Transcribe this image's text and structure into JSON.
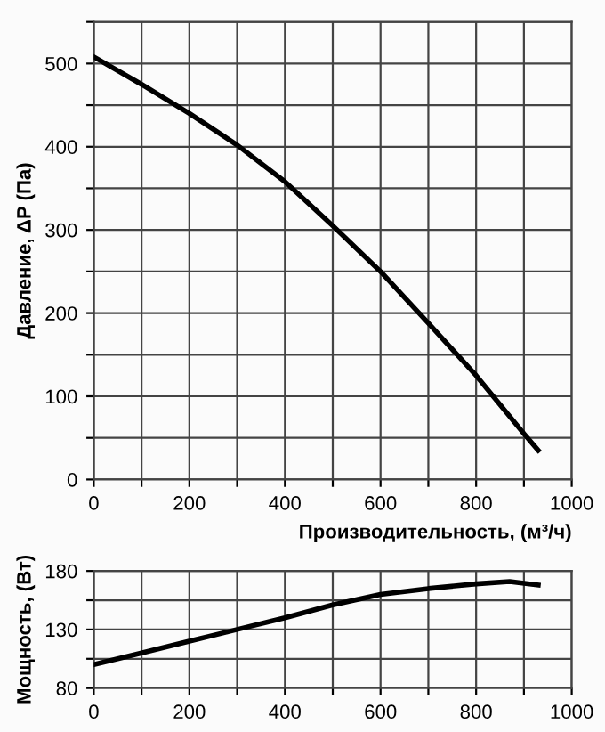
{
  "chart_data": [
    {
      "type": "line",
      "ylabel": "Давление, ΔP (Па)",
      "xlabel": "Производительность, (м³/ч)",
      "grid": true,
      "marker": "none",
      "line_style": "solid",
      "x": [
        0,
        100,
        200,
        300,
        400,
        500,
        600,
        700,
        800,
        900,
        930
      ],
      "series": [
        {
          "color": "#000000",
          "values": [
            508,
            475,
            440,
            402,
            358,
            305,
            250,
            188,
            125,
            55,
            35
          ]
        }
      ],
      "xlim": [
        0,
        1000
      ],
      "xticks": [
        0,
        {
          "value": 100,
          "label": null
        },
        200,
        {
          "value": 300,
          "label": null
        },
        400,
        {
          "value": 500,
          "label": null
        },
        600,
        {
          "value": 700,
          "label": null
        },
        800,
        {
          "value": 900,
          "label": null
        },
        1000
      ],
      "ylim": [
        0,
        550
      ],
      "yticks": [
        0,
        {
          "value": 50,
          "label": null
        },
        100,
        {
          "value": 150,
          "label": null
        },
        200,
        {
          "value": 250,
          "label": null
        },
        300,
        {
          "value": 350,
          "label": null
        },
        400,
        {
          "value": 450,
          "label": null
        },
        500,
        {
          "value": 550,
          "label": null
        }
      ]
    },
    {
      "type": "line",
      "ylabel": "Мощность, (Вт)",
      "grid": true,
      "marker": "none",
      "line_style": "solid",
      "x": [
        0,
        100,
        200,
        300,
        400,
        500,
        600,
        700,
        800,
        870,
        930
      ],
      "series": [
        {
          "color": "#000000",
          "values": [
            100,
            110,
            120,
            130,
            140,
            151,
            160,
            165,
            169,
            171,
            168
          ]
        }
      ],
      "xlim": [
        0,
        1000
      ],
      "xticks": [
        0,
        {
          "value": 100,
          "label": null
        },
        200,
        {
          "value": 300,
          "label": null
        },
        400,
        {
          "value": 500,
          "label": null
        },
        600,
        {
          "value": 700,
          "label": null
        },
        800,
        {
          "value": 900,
          "label": null
        },
        1000
      ],
      "ylim": [
        80,
        180
      ],
      "yticks": [
        80,
        {
          "value": 105,
          "label": null
        },
        130,
        {
          "value": 155,
          "label": null
        },
        180
      ]
    }
  ]
}
